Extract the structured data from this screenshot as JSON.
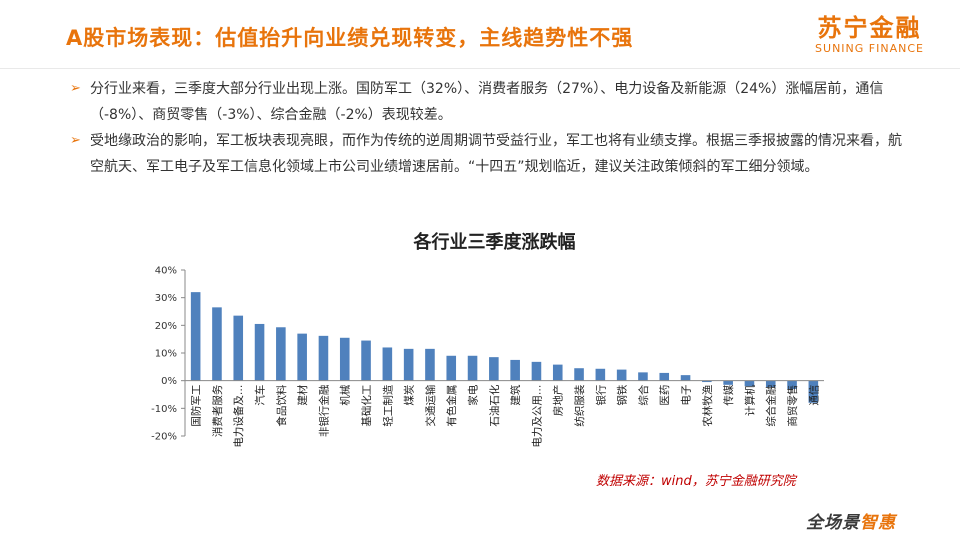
{
  "header": {
    "title": "A股市场表现：估值抬升向业绩兑现转变，主线趋势性不强",
    "logo_cn": "苏宁金融",
    "logo_en": "SUNING FINANCE"
  },
  "bullets": [
    {
      "text": "分行业来看，三季度大部分行业出现上涨。国防军工（32%）、消费者服务（27%）、电力设备及新能源（24%）涨幅居前，通信（-8%）、商贸零售（-3%）、综合金融（-2%）表现较差。"
    },
    {
      "text": "受地缘政治的影响，军工板块表现亮眼，而作为传统的逆周期调节受益行业，军工也将有业绩支撑。根据三季报披露的情况来看，航空航天、军工电子及军工信息化领域上市公司业绩增速居前。“十四五”规划临近，建议关注政策倾斜的军工细分领域。"
    }
  ],
  "chart_data": {
    "type": "bar",
    "title": "各行业三季度涨跌幅",
    "categories": [
      "国防军工",
      "消费者服务",
      "电力设备及…",
      "汽车",
      "食品饮料",
      "建材",
      "非银行金融",
      "机械",
      "基础化工",
      "轻工制造",
      "煤炭",
      "交通运输",
      "有色金属",
      "家电",
      "石油石化",
      "建筑",
      "电力及公用…",
      "房地产",
      "纺织服装",
      "银行",
      "钢铁",
      "综合",
      "医药",
      "电子",
      "农林牧渔",
      "传媒",
      "计算机",
      "综合金融",
      "商贸零售",
      "通信"
    ],
    "values": [
      32,
      26.5,
      23.5,
      20.5,
      19.3,
      17,
      16.2,
      15.5,
      14.5,
      12,
      11.5,
      11.5,
      9,
      9,
      8.5,
      7.5,
      6.8,
      5.8,
      4.5,
      4.3,
      4,
      3,
      2.8,
      2,
      -0.5,
      -1.5,
      -2,
      -2.5,
      -3,
      -8
    ],
    "y_ticks": [
      "-20%",
      "-10%",
      "0%",
      "10%",
      "20%",
      "30%",
      "40%"
    ],
    "ylim": [
      -20,
      40
    ],
    "bar_color": "#4f81bd"
  },
  "footer": {
    "source": "数据来源：wind，苏宁金融研究院",
    "slogan_a": "全场景",
    "slogan_b": "智惠"
  }
}
